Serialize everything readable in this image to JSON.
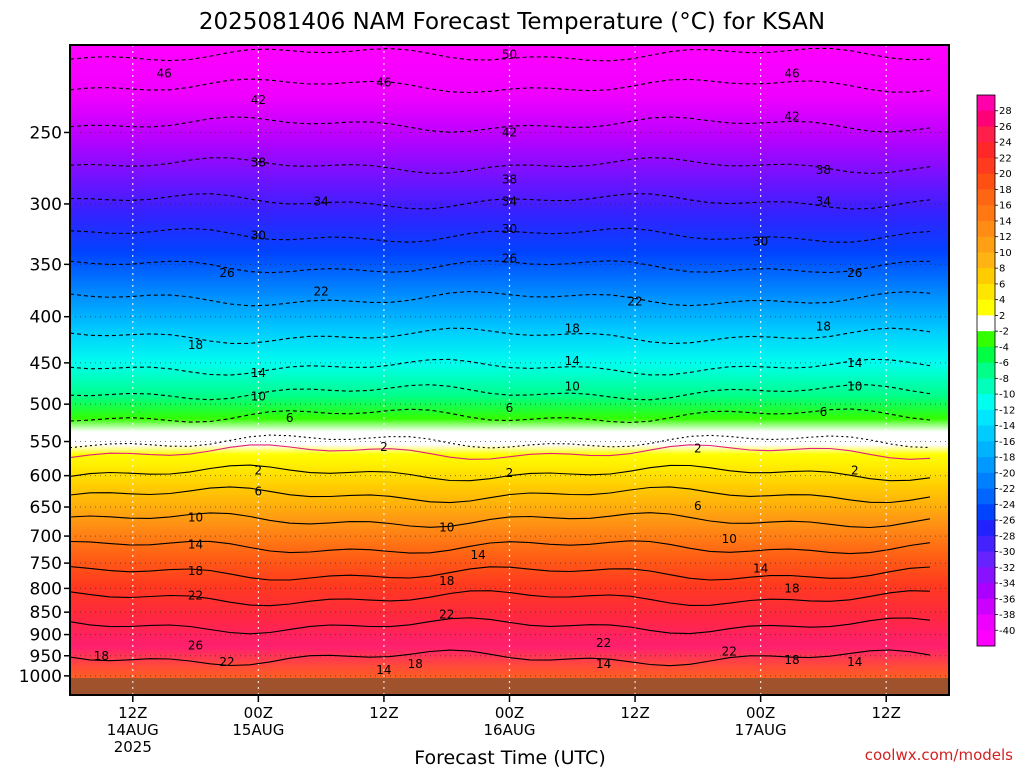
{
  "chart_data": {
    "type": "heatmap",
    "title": "2025081406 NAM Forecast Temperature (°C) for KSAN",
    "xlabel": "Forecast Time (UTC)",
    "ylabel": "",
    "credit": "coolwx.com/models",
    "y_scale": "log pressure (hPa), decreasing upward",
    "ylim": [
      1050,
      200
    ],
    "yticks": [
      250,
      300,
      350,
      400,
      450,
      500,
      550,
      600,
      650,
      700,
      750,
      800,
      850,
      900,
      950,
      1000
    ],
    "x_range": [
      "2025-08-14 06Z",
      "2025-08-17 18Z"
    ],
    "xticks": [
      {
        "time": "2025-08-14 12Z",
        "lines": [
          "12Z",
          "14AUG",
          "2025"
        ]
      },
      {
        "time": "2025-08-15 00Z",
        "lines": [
          "00Z",
          "15AUG"
        ]
      },
      {
        "time": "2025-08-15 12Z",
        "lines": [
          "12Z"
        ]
      },
      {
        "time": "2025-08-16 00Z",
        "lines": [
          "00Z",
          "16AUG"
        ]
      },
      {
        "time": "2025-08-16 12Z",
        "lines": [
          "12Z"
        ]
      },
      {
        "time": "2025-08-17 00Z",
        "lines": [
          "00Z",
          "17AUG"
        ]
      },
      {
        "time": "2025-08-17 12Z",
        "lines": [
          "12Z"
        ]
      }
    ],
    "grid": true,
    "colorbar": {
      "placement": "right",
      "labels": [
        28,
        26,
        24,
        22,
        20,
        18,
        16,
        14,
        12,
        10,
        8,
        6,
        4,
        2,
        -2,
        -4,
        -6,
        -8,
        -10,
        -12,
        -14,
        -16,
        -18,
        -20,
        -22,
        -24,
        -26,
        -28,
        -30,
        -32,
        -34,
        -36,
        -38,
        -40
      ],
      "colors": [
        "#ff00aa",
        "#ff0077",
        "#ff1f4a",
        "#ff2828",
        "#ff3a1e",
        "#ff5014",
        "#ff6614",
        "#ff7814",
        "#ff8c14",
        "#ffa014",
        "#ffb414",
        "#ffcc00",
        "#ffe600",
        "#ffff00",
        "#ffffff",
        "#33ff00",
        "#00ff44",
        "#00ff88",
        "#00ffbb",
        "#00ffee",
        "#00e6ff",
        "#00ccff",
        "#00b3ff",
        "#0099ff",
        "#0080ff",
        "#0066ff",
        "#0044ff",
        "#2222ff",
        "#4422ff",
        "#6622ff",
        "#8811ff",
        "#aa00ff",
        "#cc00ff",
        "#ee00ff",
        "#ff00ff"
      ]
    },
    "isotherm_profile_at_15AUG_00Z": [
      {
        "p": 1000,
        "t": 20
      },
      {
        "p": 950,
        "t": 22
      },
      {
        "p": 900,
        "t": 26
      },
      {
        "p": 850,
        "t": 24
      },
      {
        "p": 800,
        "t": 22
      },
      {
        "p": 750,
        "t": 18
      },
      {
        "p": 700,
        "t": 14
      },
      {
        "p": 650,
        "t": 10
      },
      {
        "p": 600,
        "t": 6
      },
      {
        "p": 575,
        "t": 2
      },
      {
        "p": 500,
        "t": -6
      },
      {
        "p": 450,
        "t": -14
      },
      {
        "p": 400,
        "t": -18
      },
      {
        "p": 350,
        "t": -26
      },
      {
        "p": 300,
        "t": -34
      },
      {
        "p": 250,
        "t": -42
      },
      {
        "p": 200,
        "t": -50
      }
    ],
    "contour_labels": [
      {
        "text": "50",
        "time": "2025-08-16 00Z",
        "p": 205
      },
      {
        "text": "46",
        "time": "2025-08-14 15Z",
        "p": 215
      },
      {
        "text": "46",
        "time": "2025-08-15 12Z",
        "p": 220
      },
      {
        "text": "46",
        "time": "2025-08-17 03Z",
        "p": 215
      },
      {
        "text": "42",
        "time": "2025-08-15 00Z",
        "p": 230
      },
      {
        "text": "42",
        "time": "2025-08-16 00Z",
        "p": 250
      },
      {
        "text": "42",
        "time": "2025-08-17 03Z",
        "p": 240
      },
      {
        "text": "38",
        "time": "2025-08-15 00Z",
        "p": 270
      },
      {
        "text": "38",
        "time": "2025-08-16 00Z",
        "p": 282
      },
      {
        "text": "38",
        "time": "2025-08-17 06Z",
        "p": 275
      },
      {
        "text": "34",
        "time": "2025-08-15 06Z",
        "p": 298
      },
      {
        "text": "34",
        "time": "2025-08-16 00Z",
        "p": 298
      },
      {
        "text": "34",
        "time": "2025-08-17 06Z",
        "p": 298
      },
      {
        "text": "30",
        "time": "2025-08-15 00Z",
        "p": 325
      },
      {
        "text": "30",
        "time": "2025-08-16 00Z",
        "p": 320
      },
      {
        "text": "30",
        "time": "2025-08-17 00Z",
        "p": 330
      },
      {
        "text": "26",
        "time": "2025-08-14 21Z",
        "p": 358
      },
      {
        "text": "26",
        "time": "2025-08-16 00Z",
        "p": 345
      },
      {
        "text": "26",
        "time": "2025-08-17 09Z",
        "p": 358
      },
      {
        "text": "22",
        "time": "2025-08-15 06Z",
        "p": 375
      },
      {
        "text": "22",
        "time": "2025-08-16 12Z",
        "p": 385
      },
      {
        "text": "18",
        "time": "2025-08-14 18Z",
        "p": 430
      },
      {
        "text": "18",
        "time": "2025-08-16 06Z",
        "p": 412
      },
      {
        "text": "18",
        "time": "2025-08-17 06Z",
        "p": 410
      },
      {
        "text": "14",
        "time": "2025-08-15 00Z",
        "p": 462
      },
      {
        "text": "14",
        "time": "2025-08-16 06Z",
        "p": 448
      },
      {
        "text": "14",
        "time": "2025-08-17 09Z",
        "p": 450
      },
      {
        "text": "10",
        "time": "2025-08-15 00Z",
        "p": 490
      },
      {
        "text": "10",
        "time": "2025-08-16 06Z",
        "p": 478
      },
      {
        "text": "10",
        "time": "2025-08-17 09Z",
        "p": 478
      },
      {
        "text": "6",
        "time": "2025-08-15 03Z",
        "p": 518
      },
      {
        "text": "6",
        "time": "2025-08-16 00Z",
        "p": 505
      },
      {
        "text": "6",
        "time": "2025-08-17 06Z",
        "p": 510
      },
      {
        "text": "2",
        "time": "2025-08-15 12Z",
        "p": 558
      },
      {
        "text": "2",
        "time": "2025-08-16 18Z",
        "p": 560
      },
      {
        "text": "2",
        "time": "2025-08-15 00Z",
        "p": 592
      },
      {
        "text": "2",
        "time": "2025-08-16 00Z",
        "p": 596
      },
      {
        "text": "2",
        "time": "2025-08-17 09Z",
        "p": 592
      },
      {
        "text": "6",
        "time": "2025-08-15 00Z",
        "p": 625
      },
      {
        "text": "6",
        "time": "2025-08-16 18Z",
        "p": 648
      },
      {
        "text": "10",
        "time": "2025-08-14 18Z",
        "p": 668
      },
      {
        "text": "10",
        "time": "2025-08-15 18Z",
        "p": 685
      },
      {
        "text": "10",
        "time": "2025-08-16 21Z",
        "p": 705
      },
      {
        "text": "14",
        "time": "2025-08-14 18Z",
        "p": 715
      },
      {
        "text": "14",
        "time": "2025-08-15 21Z",
        "p": 735
      },
      {
        "text": "14",
        "time": "2025-08-17 00Z",
        "p": 760
      },
      {
        "text": "18",
        "time": "2025-08-14 18Z",
        "p": 765
      },
      {
        "text": "18",
        "time": "2025-08-15 18Z",
        "p": 785
      },
      {
        "text": "18",
        "time": "2025-08-17 03Z",
        "p": 800
      },
      {
        "text": "22",
        "time": "2025-08-14 18Z",
        "p": 815
      },
      {
        "text": "22",
        "time": "2025-08-15 18Z",
        "p": 855
      },
      {
        "text": "22",
        "time": "2025-08-16 09Z",
        "p": 920
      },
      {
        "text": "22",
        "time": "2025-08-16 21Z",
        "p": 940
      },
      {
        "text": "26",
        "time": "2025-08-14 18Z",
        "p": 925
      },
      {
        "text": "22",
        "time": "2025-08-14 21Z",
        "p": 965
      },
      {
        "text": "18",
        "time": "2025-08-14 09Z",
        "p": 950
      },
      {
        "text": "14",
        "time": "2025-08-15 12Z",
        "p": 985
      },
      {
        "text": "18",
        "time": "2025-08-15 15Z",
        "p": 970
      },
      {
        "text": "14",
        "time": "2025-08-16 09Z",
        "p": 970
      },
      {
        "text": "18",
        "time": "2025-08-17 03Z",
        "p": 960
      },
      {
        "text": "14",
        "time": "2025-08-17 09Z",
        "p": 965
      }
    ]
  }
}
